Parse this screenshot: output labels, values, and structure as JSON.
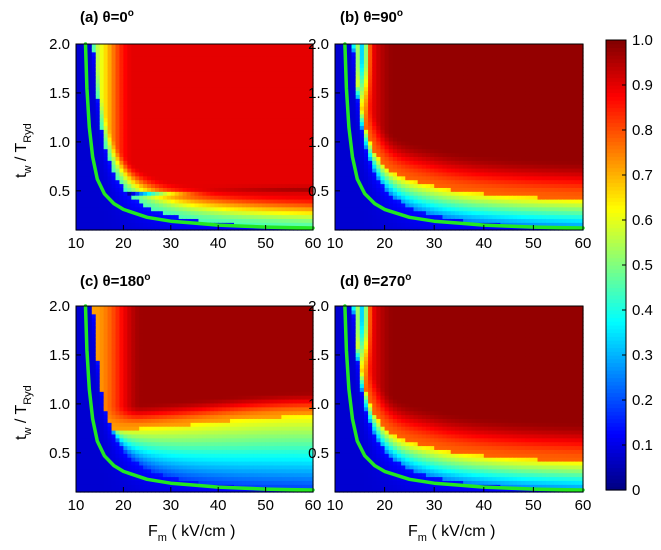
{
  "chart_data": {
    "type": "heatmap",
    "x_axis": {
      "label_main": "F",
      "label_sub": "m",
      "label_unit": " ( kV/cm )",
      "range": [
        10,
        60
      ],
      "ticks": [
        10,
        20,
        30,
        40,
        50,
        60
      ],
      "tick_labels": [
        "10",
        "20",
        "30",
        "40",
        "50",
        "60"
      ]
    },
    "y_axis": {
      "label_main": "t",
      "label_sub": "w",
      "label_mid": " / T",
      "label_sub2": "Ryd",
      "range": [
        0.1,
        2.0
      ],
      "ticks": [
        0.5,
        1.0,
        1.5,
        2.0
      ],
      "tick_labels": [
        "0.5",
        "1.0",
        "1.5",
        "2.0"
      ]
    },
    "colorbar": {
      "range": [
        0,
        1
      ],
      "ticks": [
        0,
        0.1,
        0.2,
        0.3,
        0.4,
        0.5,
        0.6,
        0.7,
        0.8,
        0.9,
        1.0
      ],
      "tick_labels": [
        "0",
        "0.1",
        "0.2",
        "0.3",
        "0.4",
        "0.5",
        "0.6",
        "0.7",
        "0.8",
        "0.9",
        "1.0"
      ],
      "colormap": "jet"
    },
    "threshold_curve": {
      "color": "#22e822",
      "x": [
        12.0,
        12.3,
        12.8,
        13.5,
        14.5,
        16,
        18,
        20,
        25,
        30,
        35,
        40,
        45,
        50,
        55,
        60
      ],
      "y": [
        2.0,
        1.55,
        1.15,
        0.85,
        0.62,
        0.47,
        0.37,
        0.31,
        0.23,
        0.19,
        0.17,
        0.15,
        0.14,
        0.13,
        0.125,
        0.12
      ]
    },
    "panels": [
      {
        "title_prefix": "(a) ",
        "title_theta": "θ=0",
        "title_deg": "o",
        "pattern": "a"
      },
      {
        "title_prefix": "(b) ",
        "title_theta": "θ=90",
        "title_deg": "o",
        "pattern": "b"
      },
      {
        "title_prefix": "(c) ",
        "title_theta": "θ=180",
        "title_deg": "o",
        "pattern": "c"
      },
      {
        "title_prefix": "(d) ",
        "title_theta": "θ=270",
        "title_deg": "o",
        "pattern": "b"
      }
    ]
  }
}
